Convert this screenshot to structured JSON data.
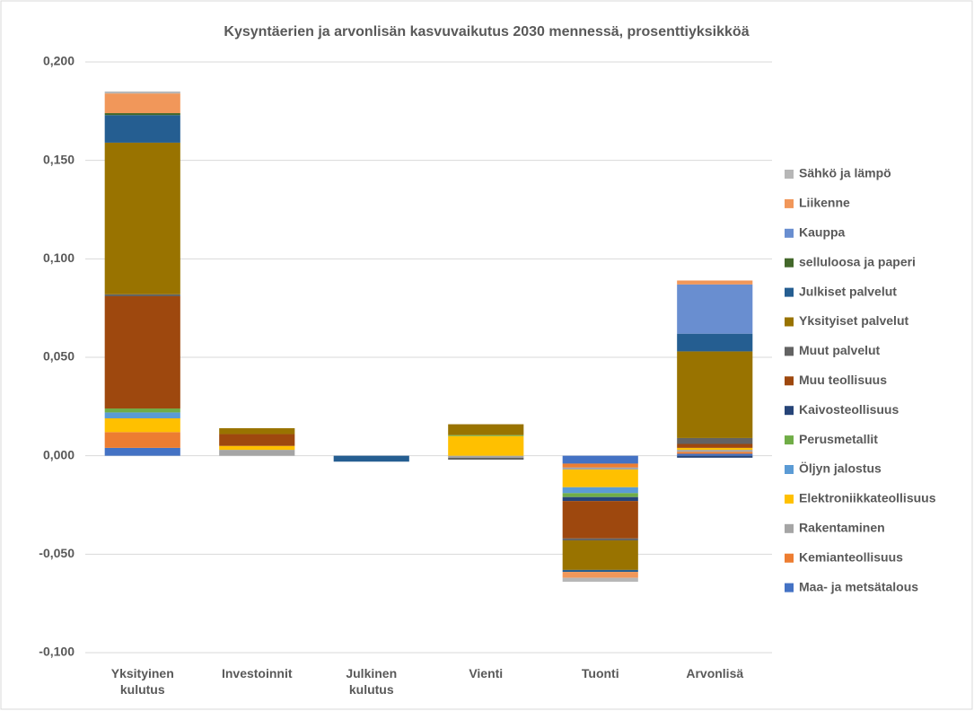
{
  "chart_data": {
    "type": "stacked_bar",
    "title": "Kysyntäerien ja arvonlisän kasvuvaikutus 2030 mennessä, prosenttiyksikköä",
    "categories": [
      "Yksityinen kulutus",
      "Investoinnit",
      "Julkinen kulutus",
      "Vienti",
      "Tuonti",
      "Arvonlisä"
    ],
    "series": [
      {
        "name": "Maa- ja metsätalous",
        "color": "#4472c4",
        "values": [
          0.004,
          0,
          0,
          0,
          -0.004,
          0.001
        ]
      },
      {
        "name": "Kemianteollisuus",
        "color": "#ed7d31",
        "values": [
          0.008,
          0,
          0,
          0,
          -0.002,
          0.001
        ]
      },
      {
        "name": "Rakentaminen",
        "color": "#a5a5a5",
        "values": [
          0,
          0.003,
          0,
          -0.001,
          -0.001,
          0.001
        ]
      },
      {
        "name": "Elektroniikkateollisuus",
        "color": "#ffc000",
        "values": [
          0.007,
          0.002,
          0,
          0.01,
          -0.009,
          0.001
        ]
      },
      {
        "name": "Öljyn jalostus",
        "color": "#5b9bd5",
        "values": [
          0.003,
          0,
          0,
          0,
          -0.003,
          0
        ]
      },
      {
        "name": "Perusmetallit",
        "color": "#70ad47",
        "values": [
          0.002,
          0,
          0,
          0.0005,
          -0.002,
          0
        ]
      },
      {
        "name": "Kaivosteollisuus",
        "color": "#264478",
        "values": [
          0,
          0,
          0,
          0,
          -0.002,
          -0.001
        ]
      },
      {
        "name": "Muu teollisuus",
        "color": "#9e480e",
        "values": [
          0.057,
          0.006,
          0,
          0,
          -0.019,
          0.002
        ]
      },
      {
        "name": "Muut palvelut",
        "color": "#636363",
        "values": [
          0.001,
          0,
          0,
          -0.001,
          -0.001,
          0.003
        ]
      },
      {
        "name": "Yksityiset palvelut",
        "color": "#997300",
        "values": [
          0.077,
          0.003,
          0,
          0.0055,
          -0.015,
          0.044
        ]
      },
      {
        "name": "Julkiset palvelut",
        "color": "#255e91",
        "values": [
          0.014,
          0,
          -0.003,
          0,
          -0.001,
          0.009
        ]
      },
      {
        "name": "selluloosa ja paperi",
        "color": "#43682b",
        "values": [
          0.001,
          0,
          0,
          0,
          0,
          0
        ]
      },
      {
        "name": "Kauppa",
        "color": "#698ed0",
        "values": [
          0,
          0,
          0,
          0,
          0,
          0.025
        ]
      },
      {
        "name": "Liikenne",
        "color": "#f1975a",
        "values": [
          0.01,
          0,
          0,
          0,
          -0.003,
          0.002
        ]
      },
      {
        "name": "Sähkö ja lämpö",
        "color": "#b7b7b7",
        "values": [
          0.001,
          0,
          0,
          0,
          -0.002,
          0
        ]
      }
    ],
    "ylim": [
      -0.1,
      0.2
    ],
    "yticks": [
      {
        "value": -0.1,
        "label": "-0,100"
      },
      {
        "value": -0.05,
        "label": "-0,050"
      },
      {
        "value": 0,
        "label": "0,000"
      },
      {
        "value": 0.05,
        "label": "0,050"
      },
      {
        "value": 0.1,
        "label": "0,100"
      },
      {
        "value": 0.15,
        "label": "0,150"
      },
      {
        "value": 0.2,
        "label": "0,200"
      }
    ],
    "grid": true,
    "legend": "right"
  }
}
